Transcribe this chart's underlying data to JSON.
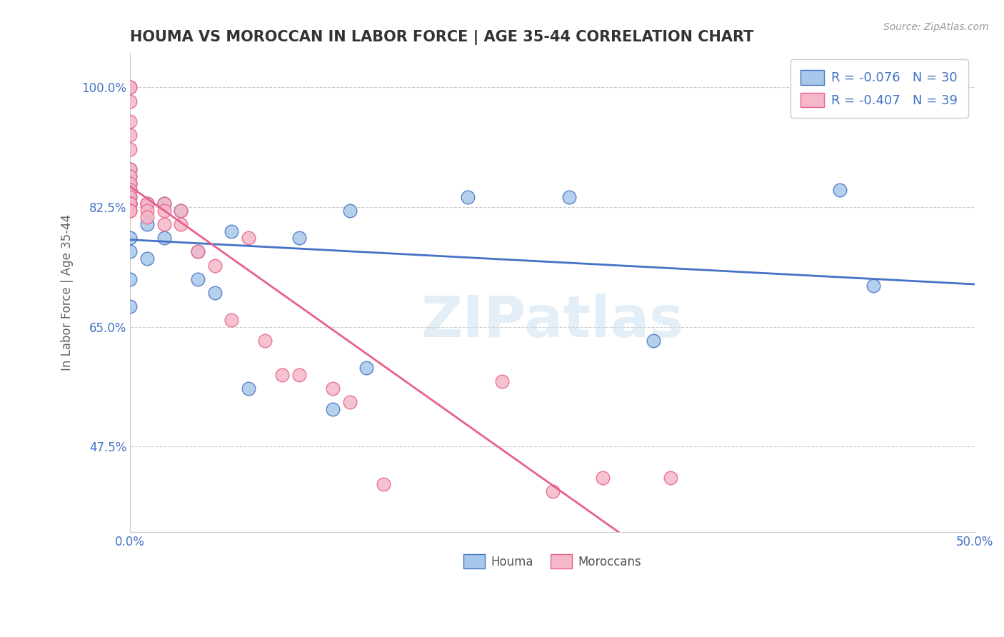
{
  "title": "HOUMA VS MOROCCAN IN LABOR FORCE | AGE 35-44 CORRELATION CHART",
  "source": "Source: ZipAtlas.com",
  "ylabel": "In Labor Force | Age 35-44",
  "xlim": [
    0.0,
    0.5
  ],
  "ylim": [
    0.35,
    1.05
  ],
  "yticks": [
    0.475,
    0.65,
    0.825,
    1.0
  ],
  "yticklabels": [
    "47.5%",
    "65.0%",
    "82.5%",
    "100.0%"
  ],
  "xtick_positions": [
    0.0,
    0.1,
    0.2,
    0.3,
    0.4,
    0.5
  ],
  "xticklabels": [
    "0.0%",
    "",
    "",
    "",
    "",
    "50.0%"
  ],
  "houma_R": "-0.076",
  "houma_N": "30",
  "moroccan_R": "-0.407",
  "moroccan_N": "39",
  "houma_fill_color": "#a8c8ea",
  "moroccan_fill_color": "#f4b8c8",
  "houma_edge_color": "#4472c4",
  "moroccan_edge_color": "#e8608a",
  "houma_line_color": "#4472c4",
  "moroccan_line_color": "#e8608a",
  "watermark": "ZIPatlas",
  "houma_x": [
    0.0,
    0.0,
    0.0,
    0.0,
    0.0,
    0.0,
    0.0,
    0.0,
    0.0,
    0.0,
    0.01,
    0.01,
    0.01,
    0.02,
    0.02,
    0.03,
    0.04,
    0.04,
    0.05,
    0.06,
    0.07,
    0.1,
    0.12,
    0.13,
    0.14,
    0.2,
    0.26,
    0.31,
    0.42,
    0.44
  ],
  "houma_y": [
    0.83,
    0.84,
    0.85,
    0.86,
    0.87,
    0.88,
    0.76,
    0.72,
    0.68,
    0.78,
    0.83,
    0.8,
    0.75,
    0.83,
    0.78,
    0.82,
    0.76,
    0.72,
    0.7,
    0.79,
    0.56,
    0.78,
    0.53,
    0.82,
    0.59,
    0.84,
    0.84,
    0.63,
    0.85,
    0.71
  ],
  "moroccan_x": [
    0.0,
    0.0,
    0.0,
    0.0,
    0.0,
    0.0,
    0.0,
    0.0,
    0.0,
    0.0,
    0.0,
    0.0,
    0.0,
    0.0,
    0.0,
    0.0,
    0.01,
    0.01,
    0.01,
    0.01,
    0.02,
    0.02,
    0.02,
    0.03,
    0.03,
    0.04,
    0.05,
    0.06,
    0.07,
    0.08,
    0.09,
    0.1,
    0.12,
    0.13,
    0.15,
    0.22,
    0.25,
    0.28,
    0.32
  ],
  "moroccan_y": [
    1.0,
    1.0,
    0.98,
    0.95,
    0.93,
    0.91,
    0.88,
    0.87,
    0.86,
    0.85,
    0.84,
    0.83,
    0.83,
    0.83,
    0.82,
    0.82,
    0.83,
    0.83,
    0.82,
    0.81,
    0.83,
    0.82,
    0.8,
    0.82,
    0.8,
    0.76,
    0.74,
    0.66,
    0.78,
    0.63,
    0.58,
    0.58,
    0.56,
    0.54,
    0.42,
    0.57,
    0.41,
    0.43,
    0.43
  ],
  "background_color": "#ffffff",
  "grid_color": "#cccccc",
  "title_color": "#333333",
  "label_color": "#666666",
  "tick_color": "#4472c4",
  "legend_text_color": "#4472c4"
}
